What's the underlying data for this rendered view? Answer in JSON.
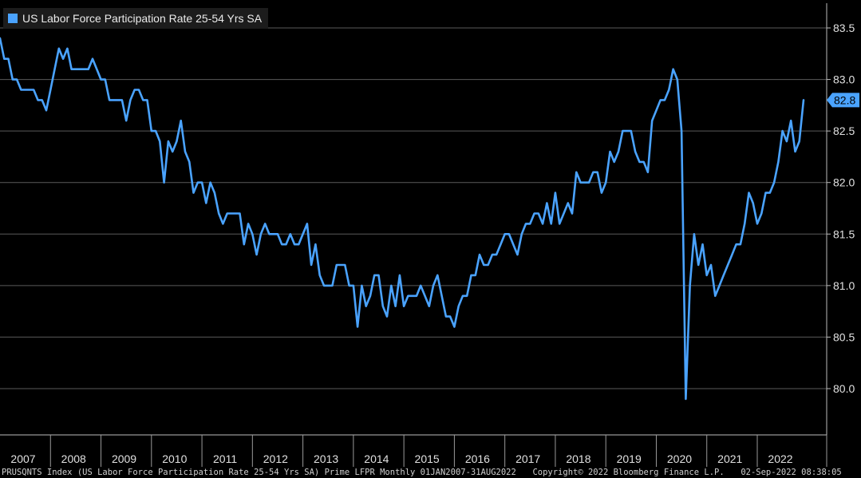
{
  "chart_data": {
    "type": "line",
    "title": "",
    "xlabel": "",
    "ylabel": "",
    "ylim": [
      79.6,
      83.7
    ],
    "y_ticks": [
      "83.5",
      "83.0",
      "82.5",
      "82.0",
      "81.5",
      "81.0",
      "80.5",
      "80.0"
    ],
    "x_ticks": [
      "2007",
      "2008",
      "2009",
      "2010",
      "2011",
      "2012",
      "2013",
      "2014",
      "2015",
      "2016",
      "2017",
      "2018",
      "2019",
      "2020",
      "2021",
      "2022"
    ],
    "grid": true,
    "legend_position": "top-left",
    "last_value_label": "82.8",
    "series": [
      {
        "name": "US Labor Force Participation Rate 25-54 Yrs SA",
        "color": "#4aa3ff",
        "start": "2007-01",
        "end": "2022-08",
        "frequency": "monthly",
        "values": [
          83.4,
          83.2,
          83.2,
          83.0,
          83.0,
          82.9,
          82.9,
          82.9,
          82.9,
          82.8,
          82.8,
          82.7,
          82.9,
          83.1,
          83.3,
          83.2,
          83.3,
          83.1,
          83.1,
          83.1,
          83.1,
          83.1,
          83.2,
          83.1,
          83.0,
          83.0,
          82.8,
          82.8,
          82.8,
          82.8,
          82.6,
          82.8,
          82.9,
          82.9,
          82.8,
          82.8,
          82.5,
          82.5,
          82.4,
          82.0,
          82.4,
          82.3,
          82.4,
          82.6,
          82.3,
          82.2,
          81.9,
          82.0,
          82.0,
          81.8,
          82.0,
          81.9,
          81.7,
          81.6,
          81.7,
          81.7,
          81.7,
          81.7,
          81.4,
          81.6,
          81.5,
          81.3,
          81.5,
          81.6,
          81.5,
          81.5,
          81.5,
          81.4,
          81.4,
          81.5,
          81.4,
          81.4,
          81.5,
          81.6,
          81.2,
          81.4,
          81.1,
          81.0,
          81.0,
          81.0,
          81.2,
          81.2,
          81.2,
          81.0,
          81.0,
          80.6,
          81.0,
          80.8,
          80.9,
          81.1,
          81.1,
          80.8,
          80.7,
          81.0,
          80.8,
          81.1,
          80.8,
          80.9,
          80.9,
          80.9,
          81.0,
          80.9,
          80.8,
          81.0,
          81.1,
          80.9,
          80.7,
          80.7,
          80.6,
          80.8,
          80.9,
          80.9,
          81.1,
          81.1,
          81.3,
          81.2,
          81.2,
          81.3,
          81.3,
          81.4,
          81.5,
          81.5,
          81.4,
          81.3,
          81.5,
          81.6,
          81.6,
          81.7,
          81.7,
          81.6,
          81.8,
          81.6,
          81.9,
          81.6,
          81.7,
          81.8,
          81.7,
          82.1,
          82.0,
          82.0,
          82.0,
          82.1,
          82.1,
          81.9,
          82.0,
          82.3,
          82.2,
          82.3,
          82.5,
          82.5,
          82.5,
          82.3,
          82.2,
          82.2,
          82.1,
          82.6,
          82.7,
          82.8,
          82.8,
          82.9,
          83.1,
          83.0,
          82.5,
          79.9,
          81.0,
          81.5,
          81.2,
          81.4,
          81.1,
          81.2,
          80.9,
          81.0,
          81.1,
          81.2,
          81.3,
          81.4,
          81.4,
          81.6,
          81.9,
          81.8,
          81.6,
          81.7,
          81.9,
          81.9,
          82.0,
          82.2,
          82.5,
          82.4,
          82.6,
          82.3,
          82.4,
          82.8
        ]
      }
    ]
  },
  "legend": {
    "label": "US Labor Force Participation Rate 25-54 Yrs SA",
    "color": "#4aa3ff"
  },
  "footer": {
    "source": "PRUSQNTS Index (US Labor Force Participation Rate 25-54 Yrs SA) Prime LFPR  Monthly 01JAN2007-31AUG2022",
    "copyright": "Copyright© 2022 Bloomberg Finance L.P.",
    "timestamp": "02-Sep-2022 08:38:05"
  }
}
